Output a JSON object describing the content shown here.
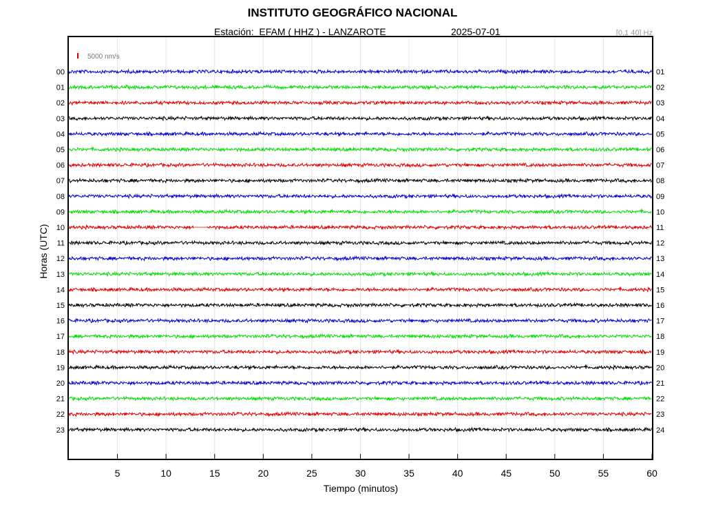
{
  "header": {
    "title": "INSTITUTO GEOGRÁFICO NACIONAL",
    "station": "Estación:  EFAM ( HHZ ) - LANZAROTE",
    "date": "2025-07-01",
    "band": "[0.1 40] Hz"
  },
  "chart_data": {
    "type": "line",
    "title": "INSTITUTO GEOGRÁFICO NACIONAL",
    "xlabel": "Tiempo (minutos)",
    "ylabel": "Horas (UTC)",
    "xlim": [
      0,
      60
    ],
    "x_ticks": [
      5,
      10,
      15,
      20,
      25,
      30,
      35,
      40,
      45,
      50,
      55,
      60
    ],
    "scale_label": "5000 nm/s",
    "scale_color": "#dd0000",
    "grid": true,
    "colors": [
      "#0000cc",
      "#00dd00",
      "#dd0000",
      "#000000"
    ],
    "series": [
      {
        "left_label": "00",
        "right_label": "01"
      },
      {
        "left_label": "01",
        "right_label": "02"
      },
      {
        "left_label": "02",
        "right_label": "03"
      },
      {
        "left_label": "03",
        "right_label": "04"
      },
      {
        "left_label": "04",
        "right_label": "05"
      },
      {
        "left_label": "05",
        "right_label": "06"
      },
      {
        "left_label": "06",
        "right_label": "07"
      },
      {
        "left_label": "07",
        "right_label": "08"
      },
      {
        "left_label": "08",
        "right_label": "09"
      },
      {
        "left_label": "09",
        "right_label": "10"
      },
      {
        "left_label": "10",
        "right_label": "11",
        "gap_minutes": [
          12.9,
          14.2
        ]
      },
      {
        "left_label": "11",
        "right_label": "12"
      },
      {
        "left_label": "12",
        "right_label": "13"
      },
      {
        "left_label": "13",
        "right_label": "14"
      },
      {
        "left_label": "14",
        "right_label": "15"
      },
      {
        "left_label": "15",
        "right_label": "16"
      },
      {
        "left_label": "16",
        "right_label": "17"
      },
      {
        "left_label": "17",
        "right_label": "18"
      },
      {
        "left_label": "18",
        "right_label": "19"
      },
      {
        "left_label": "19",
        "right_label": "20"
      },
      {
        "left_label": "20",
        "right_label": "21"
      },
      {
        "left_label": "21",
        "right_label": "22"
      },
      {
        "left_label": "22",
        "right_label": "23"
      },
      {
        "left_label": "23",
        "right_label": "24"
      }
    ]
  }
}
